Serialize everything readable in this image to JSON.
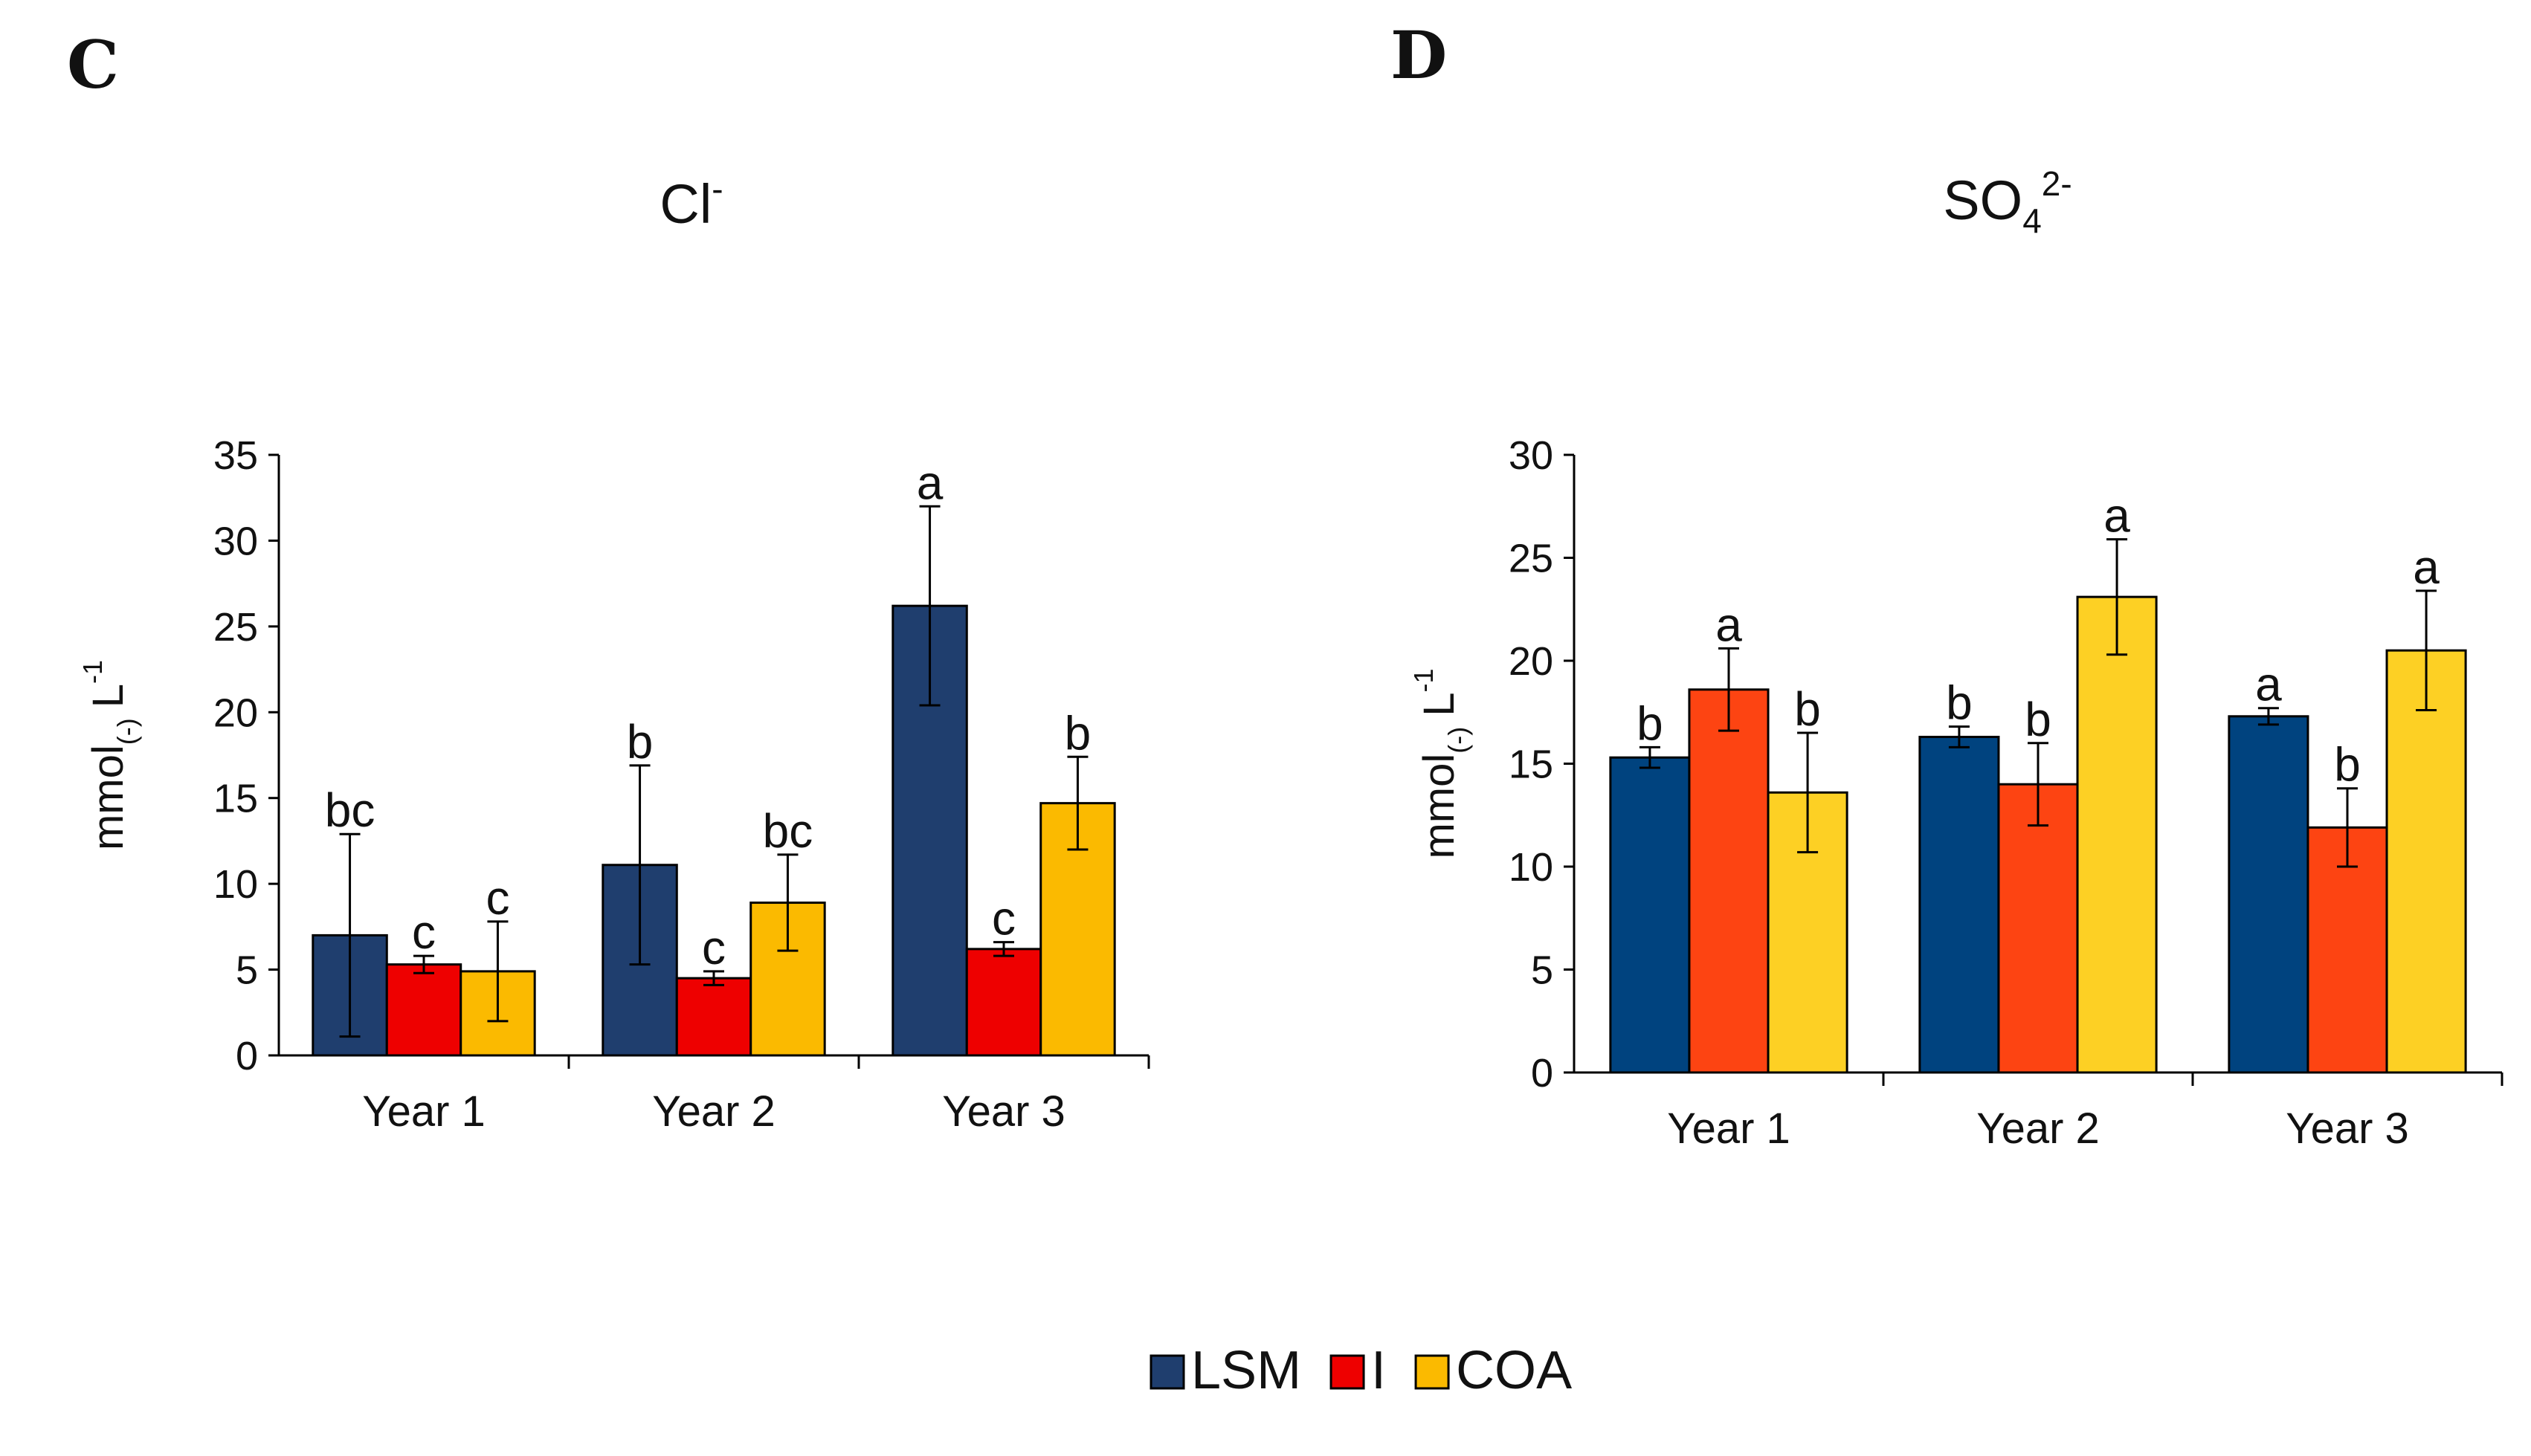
{
  "chart_data": [
    {
      "panel": "C",
      "type": "bar",
      "title_main": "Cl",
      "title_sup": "-",
      "ylabel_main": "mmol",
      "ylabel_sub": "(-)",
      "ylabel_unit": "L",
      "ylabel_sup": "-1",
      "ylim": [
        0,
        35
      ],
      "yticks": [
        0,
        5,
        10,
        15,
        20,
        25,
        30,
        35
      ],
      "categories": [
        "Year 1",
        "Year 2",
        "Year 3"
      ],
      "series": [
        {
          "name": "LSM",
          "color": "#1f3e6e",
          "values": [
            7.0,
            11.1,
            26.2
          ],
          "errors": [
            5.9,
            5.8,
            5.8
          ],
          "letters": [
            "bc",
            "b",
            "a"
          ]
        },
        {
          "name": "I",
          "color": "#ee0000",
          "values": [
            5.3,
            4.5,
            6.2
          ],
          "errors": [
            0.5,
            0.4,
            0.4
          ],
          "letters": [
            "c",
            "c",
            "c"
          ]
        },
        {
          "name": "COA",
          "color": "#fbba00",
          "values": [
            4.9,
            8.9,
            14.7
          ],
          "errors": [
            2.9,
            2.8,
            2.7
          ],
          "letters": [
            "c",
            "bc",
            "b"
          ]
        }
      ]
    },
    {
      "panel": "D",
      "type": "bar",
      "title_main": "SO",
      "title_sub": "4",
      "title_sup": "2-",
      "ylabel_main": "mmol",
      "ylabel_sub": "(-)",
      "ylabel_unit": "L",
      "ylabel_sup": "-1",
      "ylim": [
        0,
        30
      ],
      "yticks": [
        0,
        5,
        10,
        15,
        20,
        25,
        30
      ],
      "categories": [
        "Year 1",
        "Year 2",
        "Year 3"
      ],
      "series": [
        {
          "name": "LSM",
          "color": "#00437f",
          "values": [
            15.3,
            16.3,
            17.3
          ],
          "errors": [
            0.5,
            0.5,
            0.4
          ],
          "letters": [
            "b",
            "b",
            "a"
          ]
        },
        {
          "name": "I",
          "color": "#fd4412",
          "values": [
            18.6,
            14.0,
            11.9
          ],
          "errors": [
            2.0,
            2.0,
            1.9
          ],
          "letters": [
            "a",
            "b",
            "b"
          ]
        },
        {
          "name": "COA",
          "color": "#fdd024",
          "values": [
            13.6,
            23.1,
            20.5
          ],
          "errors": [
            2.9,
            2.8,
            2.9
          ],
          "letters": [
            "b",
            "a",
            "a"
          ]
        }
      ]
    }
  ],
  "legend": {
    "items": [
      {
        "label": "LSM",
        "color": "#1f3e6e"
      },
      {
        "label": "I",
        "color": "#ee0000"
      },
      {
        "label": "COA",
        "color": "#fbba00"
      }
    ]
  }
}
